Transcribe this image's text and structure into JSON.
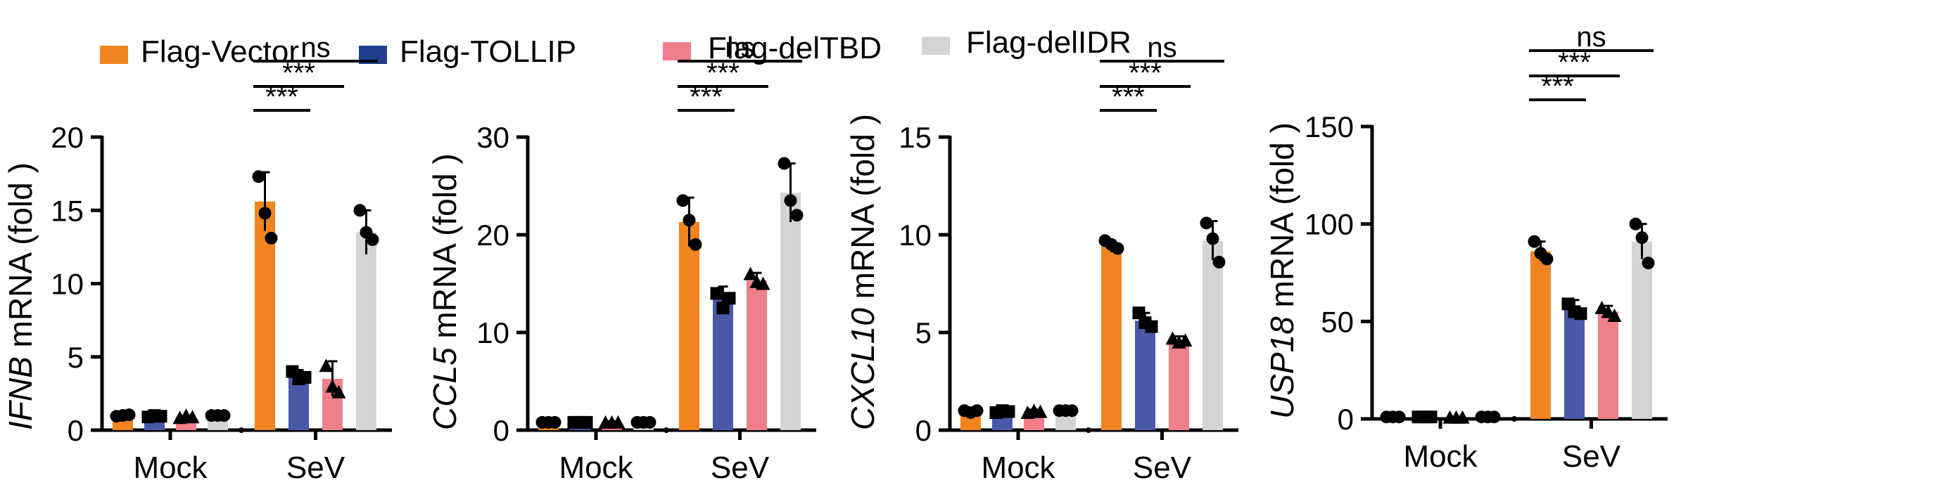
{
  "legend": [
    {
      "label": "Flag-Vector",
      "color": "#F08420"
    },
    {
      "label": "Flag-TOLLIP",
      "color": "#1F3E8E"
    },
    {
      "label": "Flag-delTBD",
      "color": "#EF7F8A"
    },
    {
      "label": "Flag-delIDR",
      "color": "#D4D4D4"
    }
  ],
  "colors": {
    "bar_vector": "#F08420",
    "bar_tollip": "#4A58A8",
    "bar_deltbd": "#EF7F8A",
    "bar_delidr": "#D4D4D4",
    "axis": "#000000"
  },
  "chart_data": [
    {
      "type": "bar",
      "gene": "IFNB",
      "ylabel_suffix": " mRNA (fold )",
      "categories": [
        "Mock",
        "SeV"
      ],
      "ylim": [
        0,
        20
      ],
      "yticks": [
        "0",
        "5",
        "10",
        "15",
        "20"
      ],
      "series": [
        {
          "name": "Flag-Vector",
          "values": [
            1.0,
            15.6
          ],
          "errors": [
            0.15,
            2.0
          ],
          "points": [
            [
              0.95,
              1.0,
              1.05
            ],
            [
              17.3,
              14.8,
              13.1
            ]
          ],
          "marker": "circle"
        },
        {
          "name": "Flag-TOLLIP",
          "values": [
            0.95,
            3.7
          ],
          "errors": [
            0.1,
            0.4
          ],
          "points": [
            [
              0.9,
              1.0,
              0.95
            ],
            [
              4.0,
              3.5,
              3.6
            ]
          ],
          "marker": "square"
        },
        {
          "name": "Flag-delTBD",
          "values": [
            0.9,
            3.5
          ],
          "errors": [
            0.1,
            1.2
          ],
          "points": [
            [
              0.85,
              1.0,
              0.9
            ],
            [
              4.4,
              3.0,
              2.6
            ]
          ],
          "marker": "triangle"
        },
        {
          "name": "Flag-delIDR",
          "values": [
            1.0,
            13.5
          ],
          "errors": [
            0.1,
            1.5
          ],
          "points": [
            [
              1.0,
              1.0,
              1.0
            ],
            [
              15.0,
              13.5,
              13.0
            ]
          ],
          "marker": "circle"
        }
      ],
      "significance": [
        {
          "from": 0,
          "to": 1,
          "label": "***"
        },
        {
          "from": 0,
          "to": 2,
          "label": "***"
        },
        {
          "from": 0,
          "to": 3,
          "label": "ns"
        }
      ]
    },
    {
      "type": "bar",
      "gene": "CCL5",
      "ylabel_suffix": " mRNA (fold )",
      "categories": [
        "Mock",
        "SeV"
      ],
      "ylim": [
        0,
        30
      ],
      "yticks": [
        "0",
        "10",
        "20",
        "30"
      ],
      "series": [
        {
          "name": "Flag-Vector",
          "values": [
            0.8,
            21.3
          ],
          "errors": [
            0.1,
            2.5
          ],
          "points": [
            [
              0.8,
              0.8,
              0.8
            ],
            [
              23.5,
              21.5,
              19.0
            ]
          ],
          "marker": "circle"
        },
        {
          "name": "Flag-TOLLIP",
          "values": [
            0.8,
            13.5
          ],
          "errors": [
            0.1,
            1.2
          ],
          "points": [
            [
              0.8,
              0.8,
              0.8
            ],
            [
              14.0,
              12.5,
              13.5
            ]
          ],
          "marker": "square"
        },
        {
          "name": "Flag-delTBD",
          "values": [
            0.8,
            15.3
          ],
          "errors": [
            0.1,
            0.8
          ],
          "points": [
            [
              0.8,
              0.8,
              0.8
            ],
            [
              16.0,
              15.2,
              15.0
            ]
          ],
          "marker": "triangle"
        },
        {
          "name": "Flag-delIDR",
          "values": [
            0.8,
            24.3
          ],
          "errors": [
            0.1,
            3.0
          ],
          "points": [
            [
              0.8,
              0.8,
              0.8
            ],
            [
              27.3,
              23.5,
              22.0
            ]
          ],
          "marker": "circle"
        }
      ],
      "significance": [
        {
          "from": 0,
          "to": 1,
          "label": "***"
        },
        {
          "from": 0,
          "to": 2,
          "label": "***"
        },
        {
          "from": 0,
          "to": 3,
          "label": "ns"
        }
      ]
    },
    {
      "type": "bar",
      "gene": "CXCL10",
      "ylabel_suffix": " mRNA (fold )",
      "categories": [
        "Mock",
        "SeV"
      ],
      "ylim": [
        0,
        15
      ],
      "yticks": [
        "0",
        "5",
        "10",
        "15"
      ],
      "series": [
        {
          "name": "Flag-Vector",
          "values": [
            1.0,
            9.4
          ],
          "errors": [
            0.1,
            0.3
          ],
          "points": [
            [
              1.0,
              0.9,
              1.0
            ],
            [
              9.7,
              9.5,
              9.3
            ]
          ],
          "marker": "circle"
        },
        {
          "name": "Flag-TOLLIP",
          "values": [
            0.95,
            5.6
          ],
          "errors": [
            0.1,
            0.4
          ],
          "points": [
            [
              0.9,
              1.0,
              0.95
            ],
            [
              6.0,
              5.5,
              5.3
            ]
          ],
          "marker": "square"
        },
        {
          "name": "Flag-delTBD",
          "values": [
            0.95,
            4.6
          ],
          "errors": [
            0.1,
            0.2
          ],
          "points": [
            [
              0.9,
              1.0,
              0.95
            ],
            [
              4.7,
              4.5,
              4.6
            ]
          ],
          "marker": "triangle"
        },
        {
          "name": "Flag-delIDR",
          "values": [
            1.0,
            9.7
          ],
          "errors": [
            0.1,
            1.0
          ],
          "points": [
            [
              1.0,
              1.0,
              1.0
            ],
            [
              10.6,
              9.8,
              8.6
            ]
          ],
          "marker": "circle"
        }
      ],
      "significance": [
        {
          "from": 0,
          "to": 1,
          "label": "***"
        },
        {
          "from": 0,
          "to": 2,
          "label": "***"
        },
        {
          "from": 0,
          "to": 3,
          "label": "ns"
        }
      ]
    },
    {
      "type": "bar",
      "gene": "USP18",
      "ylabel_suffix": " mRNA (fold )",
      "categories": [
        "Mock",
        "SeV"
      ],
      "ylim": [
        0,
        150
      ],
      "yticks": [
        "0",
        "50",
        "100",
        "150"
      ],
      "series": [
        {
          "name": "Flag-Vector",
          "values": [
            1.0,
            86
          ],
          "errors": [
            0.5,
            5
          ],
          "points": [
            [
              1.0,
              1.0,
              1.0
            ],
            [
              91,
              85,
              82
            ]
          ],
          "marker": "circle"
        },
        {
          "name": "Flag-TOLLIP",
          "values": [
            1.0,
            57
          ],
          "errors": [
            0.5,
            4
          ],
          "points": [
            [
              1.0,
              1.0,
              1.0
            ],
            [
              59,
              55,
              54
            ]
          ],
          "marker": "square"
        },
        {
          "name": "Flag-delTBD",
          "values": [
            0.8,
            55
          ],
          "errors": [
            0.4,
            3
          ],
          "points": [
            [
              0.8,
              0.8,
              0.8
            ],
            [
              57,
              55,
              53
            ]
          ],
          "marker": "triangle"
        },
        {
          "name": "Flag-delIDR",
          "values": [
            1.0,
            91
          ],
          "errors": [
            0.5,
            9
          ],
          "points": [
            [
              1.0,
              1.0,
              1.0
            ],
            [
              100,
              93,
              80
            ]
          ],
          "marker": "circle"
        }
      ],
      "significance": [
        {
          "from": 0,
          "to": 1,
          "label": "***"
        },
        {
          "from": 0,
          "to": 2,
          "label": "***"
        },
        {
          "from": 0,
          "to": 3,
          "label": "ns"
        }
      ]
    }
  ]
}
